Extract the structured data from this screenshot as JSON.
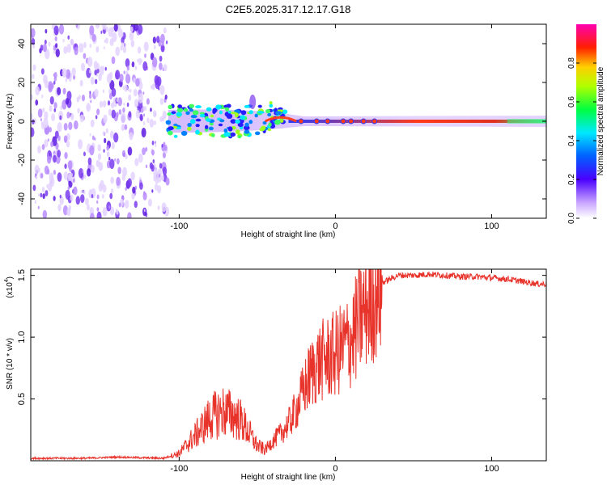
{
  "title": "C2E5.2025.317.12.17.G18",
  "chart_data": [
    {
      "type": "heatmap",
      "xlabel": "Height of straight line (km)",
      "ylabel": "Frequency (Hz)",
      "xlim": [
        -195,
        135
      ],
      "ylim": [
        -50,
        50
      ],
      "xticks": [
        -100,
        0,
        100
      ],
      "yticks": [
        -40,
        -20,
        0,
        20,
        40
      ],
      "noise_region": [
        -195,
        -107
      ],
      "line_frequency": 0,
      "colorbar": {
        "label": "Normalized spectral amplitude",
        "range": [
          0,
          1
        ],
        "ticks": [
          0.0,
          0.2,
          0.4,
          0.6,
          0.8
        ]
      }
    },
    {
      "type": "line",
      "series": [
        {
          "name": "SNR",
          "color": "#e8332b"
        }
      ],
      "xlabel": "Height of straight line (km)",
      "ylabel": "SNR (10 * v/v)",
      "multiplier": "(x10",
      "multiplier_exp": "4",
      "multiplier_close": ")",
      "xlim": [
        -195,
        135
      ],
      "ylim": [
        0,
        1.55
      ],
      "xticks": [
        -100,
        0,
        100
      ],
      "yticks": [
        0.5,
        1.0,
        1.5
      ],
      "x": [
        -195,
        -160,
        -140,
        -110,
        -100,
        -90,
        -80,
        -72,
        -65,
        -60,
        -55,
        -50,
        -45,
        -40,
        -35,
        -30,
        -25,
        -20,
        -15,
        -10,
        -5,
        0,
        5,
        10,
        15,
        20,
        25,
        30,
        40,
        50,
        60,
        70,
        80,
        90,
        100,
        110,
        120,
        130,
        135
      ],
      "values": [
        0.02,
        0.02,
        0.03,
        0.02,
        0.06,
        0.2,
        0.35,
        0.4,
        0.37,
        0.32,
        0.22,
        0.12,
        0.09,
        0.16,
        0.22,
        0.3,
        0.42,
        0.58,
        0.72,
        0.8,
        0.83,
        0.86,
        0.92,
        0.98,
        1.12,
        1.25,
        1.35,
        1.44,
        1.5,
        1.5,
        1.51,
        1.5,
        1.49,
        1.49,
        1.48,
        1.47,
        1.45,
        1.43,
        1.43
      ]
    }
  ]
}
